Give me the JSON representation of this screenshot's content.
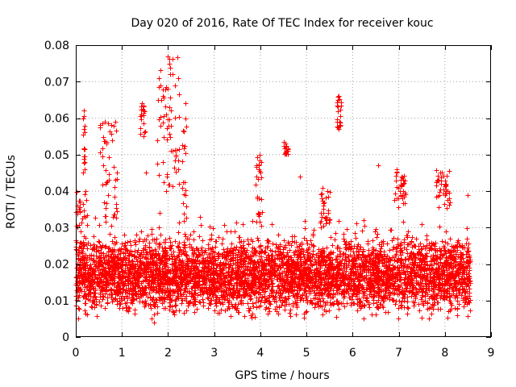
{
  "chart_data": {
    "type": "scatter",
    "title": "Day 020 of 2016, Rate Of TEC Index for receiver kouc",
    "xlabel": "GPS time / hours",
    "ylabel": "ROTI / TECUs",
    "xlim": [
      0,
      9
    ],
    "ylim": [
      0,
      0.08
    ],
    "grid": true,
    "legend": "none",
    "marker": "+",
    "colors": {
      "series": "#ff0000",
      "grid": "#a0a0a0",
      "axis": "#000000"
    },
    "x_ticks": [
      "0",
      "1",
      "2",
      "3",
      "4",
      "5",
      "6",
      "7",
      "8",
      "9"
    ],
    "y_ticks": [
      "0",
      "0.01",
      "0.02",
      "0.03",
      "0.04",
      "0.05",
      "0.06",
      "0.07",
      "0.08"
    ],
    "x_tick_values": [
      0,
      1,
      2,
      3,
      4,
      5,
      6,
      7,
      8,
      9
    ],
    "y_tick_values": [
      0,
      0.01,
      0.02,
      0.03,
      0.04,
      0.05,
      0.06,
      0.07,
      0.08
    ],
    "series": [
      {
        "name": "ROTI",
        "marker": "+",
        "color": "#ff0000",
        "x_range": [
          0,
          8.55
        ],
        "base_level": 0.015,
        "spread": [
          0.004,
          0.034
        ],
        "bursts": [
          {
            "x_range": [
              0.0,
              0.25
            ],
            "y_range": [
              0.025,
              0.04
            ]
          },
          {
            "x_range": [
              0.15,
              0.2
            ],
            "y_range": [
              0.045,
              0.062
            ]
          },
          {
            "x_range": [
              0.5,
              0.9
            ],
            "y_range": [
              0.03,
              0.06
            ]
          },
          {
            "x_range": [
              1.4,
              1.5
            ],
            "y_range": [
              0.055,
              0.064
            ]
          },
          {
            "x_range": [
              1.75,
              2.25
            ],
            "y_range": [
              0.04,
              0.077
            ]
          },
          {
            "x_range": [
              2.3,
              2.4
            ],
            "y_range": [
              0.03,
              0.064
            ]
          },
          {
            "x_range": [
              3.9,
              4.05
            ],
            "y_range": [
              0.03,
              0.05
            ]
          },
          {
            "x_range": [
              4.5,
              4.6
            ],
            "y_range": [
              0.05,
              0.054
            ]
          },
          {
            "x_range": [
              5.3,
              5.5
            ],
            "y_range": [
              0.03,
              0.042
            ]
          },
          {
            "x_range": [
              5.65,
              5.75
            ],
            "y_range": [
              0.057,
              0.066
            ]
          },
          {
            "x_range": [
              6.9,
              7.15
            ],
            "y_range": [
              0.035,
              0.046
            ]
          },
          {
            "x_range": [
              7.8,
              8.1
            ],
            "y_range": [
              0.035,
              0.046
            ]
          }
        ],
        "sample_points": [
          [
            0.17,
            0.062
          ],
          [
            0.19,
            0.046
          ],
          [
            0.08,
            0.037
          ],
          [
            0.6,
            0.047
          ],
          [
            0.72,
            0.043
          ],
          [
            0.82,
            0.058
          ],
          [
            0.85,
            0.059
          ],
          [
            0.78,
            0.054
          ],
          [
            1.44,
            0.064
          ],
          [
            1.46,
            0.055
          ],
          [
            1.52,
            0.045
          ],
          [
            1.8,
            0.071
          ],
          [
            1.84,
            0.069
          ],
          [
            1.88,
            0.066
          ],
          [
            1.95,
            0.061
          ],
          [
            2.0,
            0.077
          ],
          [
            2.02,
            0.075
          ],
          [
            2.04,
            0.072
          ],
          [
            2.0,
            0.068
          ],
          [
            2.02,
            0.063
          ],
          [
            2.06,
            0.058
          ],
          [
            2.1,
            0.051
          ],
          [
            2.16,
            0.05
          ],
          [
            2.22,
            0.046
          ],
          [
            2.37,
            0.064
          ],
          [
            2.38,
            0.06
          ],
          [
            3.35,
            0.029
          ],
          [
            3.98,
            0.05
          ],
          [
            4.02,
            0.048
          ],
          [
            3.92,
            0.047
          ],
          [
            4.55,
            0.053
          ],
          [
            4.57,
            0.051
          ],
          [
            4.85,
            0.044
          ],
          [
            5.45,
            0.04
          ],
          [
            5.68,
            0.065
          ],
          [
            5.7,
            0.066
          ],
          [
            5.66,
            0.059
          ],
          [
            5.72,
            0.058
          ],
          [
            6.55,
            0.047
          ],
          [
            6.95,
            0.045
          ],
          [
            7.05,
            0.043
          ],
          [
            7.1,
            0.04
          ],
          [
            7.9,
            0.045
          ],
          [
            7.85,
            0.043
          ],
          [
            8.05,
            0.04
          ],
          [
            8.1,
            0.037
          ],
          [
            8.5,
            0.039
          ],
          [
            1.7,
            0.004
          ],
          [
            1.65,
            0.005
          ],
          [
            7.65,
            0.005
          ],
          [
            5.0,
            0.007
          ],
          [
            0.05,
            0.005
          ]
        ]
      }
    ]
  }
}
